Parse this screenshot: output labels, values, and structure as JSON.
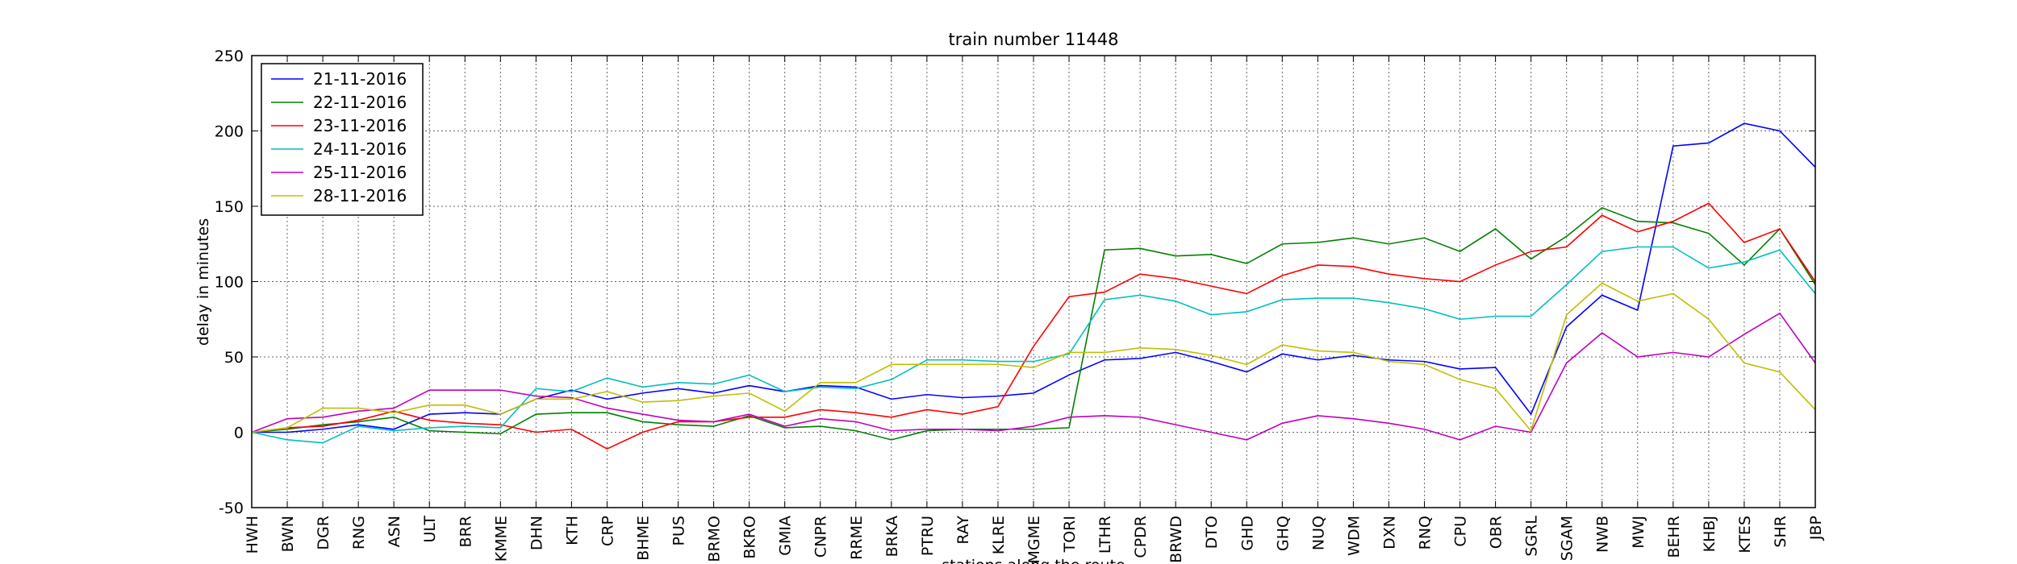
{
  "chart_data": {
    "type": "line",
    "title": "train number 11448",
    "x_label": "stations along the route",
    "y_label": "delay in minutes",
    "categories": [
      "HWH",
      "BWN",
      "DGR",
      "RNG",
      "ASN",
      "ULT",
      "BRR",
      "KMME",
      "DHN",
      "KTH",
      "CRP",
      "BHME",
      "PUS",
      "BRMO",
      "BKRO",
      "GMIA",
      "CNPR",
      "RRME",
      "BRKA",
      "PTRU",
      "RAY",
      "KLRE",
      "MGME",
      "TORI",
      "LTHR",
      "CPDR",
      "BRWD",
      "DTO",
      "GHD",
      "GHQ",
      "NUQ",
      "WDM",
      "DXN",
      "RNQ",
      "CPU",
      "OBR",
      "SGRL",
      "SGAM",
      "NWB",
      "MWJ",
      "BEHR",
      "KHBJ",
      "KTES",
      "SHR",
      "JBP"
    ],
    "series": [
      {
        "name": "21-11-2016",
        "color": "#0000ff",
        "values": [
          0,
          0,
          2,
          5,
          2,
          12,
          13,
          12,
          22,
          28,
          22,
          26,
          29,
          26,
          31,
          27,
          31,
          30,
          22,
          25,
          23,
          24,
          26,
          38,
          48,
          49,
          53,
          47,
          40,
          52,
          48,
          51,
          48,
          47,
          42,
          43,
          12,
          70,
          91,
          81,
          190,
          192,
          205,
          200,
          176
        ]
      },
      {
        "name": "22-11-2016",
        "color": "#008000",
        "values": [
          0,
          2,
          5,
          7,
          10,
          1,
          0,
          -1,
          12,
          13,
          13,
          7,
          5,
          4,
          11,
          3,
          4,
          1,
          -5,
          1,
          2,
          2,
          2,
          3,
          121,
          122,
          117,
          118,
          112,
          125,
          126,
          129,
          125,
          129,
          120,
          135,
          115,
          130,
          149,
          140,
          139,
          132,
          111,
          135,
          98
        ]
      },
      {
        "name": "23-11-2016",
        "color": "#ff0000",
        "values": [
          0,
          3,
          4,
          8,
          14,
          8,
          6,
          5,
          0,
          2,
          -11,
          0,
          7,
          7,
          10,
          10,
          15,
          13,
          10,
          15,
          12,
          17,
          57,
          90,
          93,
          105,
          102,
          97,
          92,
          104,
          111,
          110,
          105,
          102,
          100,
          111,
          120,
          123,
          144,
          133,
          140,
          152,
          126,
          135,
          100
        ]
      },
      {
        "name": "24-11-2016",
        "color": "#00bfbf",
        "values": [
          0,
          -5,
          -7,
          4,
          1,
          3,
          4,
          3,
          29,
          27,
          36,
          30,
          33,
          32,
          38,
          27,
          30,
          29,
          35,
          48,
          48,
          47,
          47,
          52,
          88,
          91,
          87,
          78,
          80,
          88,
          89,
          89,
          86,
          82,
          75,
          77,
          77,
          98,
          120,
          123,
          123,
          109,
          113,
          121,
          92
        ]
      },
      {
        "name": "25-11-2016",
        "color": "#bf00bf",
        "values": [
          0,
          9,
          10,
          14,
          16,
          28,
          28,
          28,
          24,
          23,
          16,
          12,
          8,
          7,
          12,
          4,
          9,
          7,
          1,
          2,
          2,
          1,
          4,
          10,
          11,
          10,
          5,
          0,
          -5,
          6,
          11,
          9,
          6,
          2,
          -5,
          4,
          0,
          46,
          66,
          50,
          53,
          50,
          65,
          79,
          46
        ]
      },
      {
        "name": "28-11-2016",
        "color": "#bfbf00",
        "values": [
          0,
          3,
          16,
          16,
          13,
          18,
          18,
          12,
          22,
          22,
          27,
          20,
          21,
          24,
          26,
          14,
          33,
          33,
          45,
          45,
          45,
          45,
          43,
          53,
          53,
          56,
          55,
          51,
          45,
          58,
          54,
          53,
          47,
          45,
          35,
          29,
          1,
          78,
          99,
          87,
          92,
          75,
          46,
          40,
          15
        ]
      }
    ],
    "ylim": [
      -50,
      250
    ],
    "yticks": [
      -50,
      0,
      50,
      100,
      150,
      200,
      250
    ],
    "grid": true,
    "legend": "upper left"
  }
}
